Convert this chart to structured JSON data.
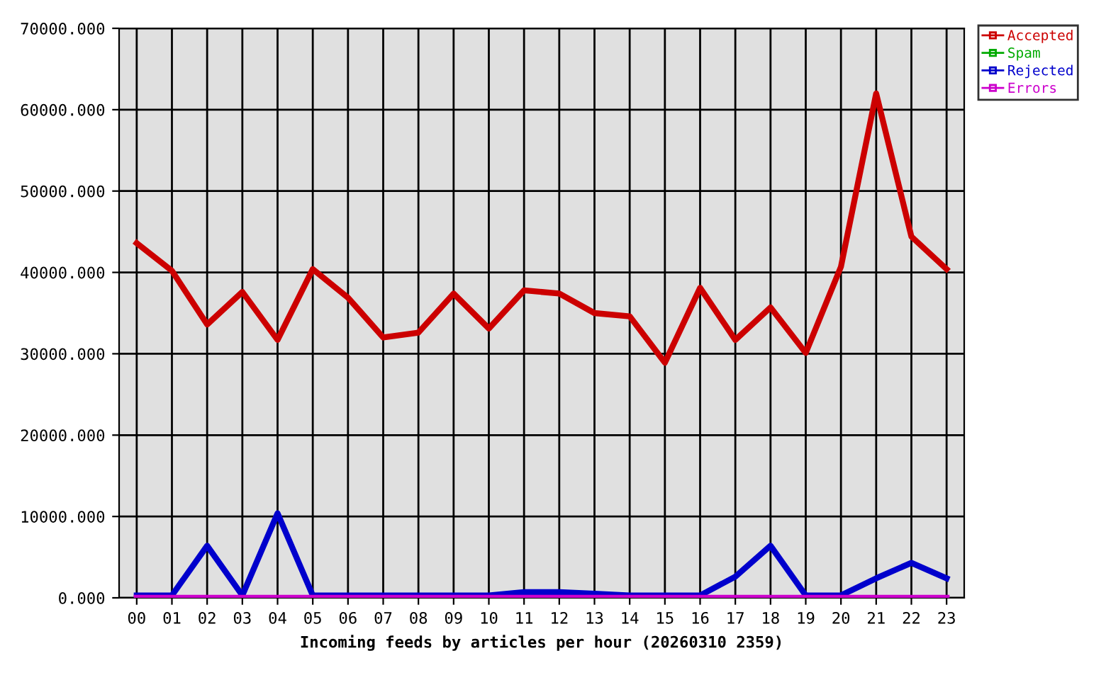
{
  "chart_data": {
    "type": "line",
    "xlabel": "Incoming feeds by articles per hour (20260310 2359)",
    "categories": [
      "00",
      "01",
      "02",
      "03",
      "04",
      "05",
      "06",
      "07",
      "08",
      "09",
      "10",
      "11",
      "12",
      "13",
      "14",
      "15",
      "16",
      "17",
      "18",
      "19",
      "20",
      "21",
      "22",
      "23"
    ],
    "series": [
      {
        "name": "Accepted",
        "color": "#cc0000",
        "values": [
          43600,
          40200,
          33600,
          37600,
          31700,
          40400,
          36900,
          32000,
          32600,
          37400,
          33100,
          37800,
          37400,
          35000,
          34600,
          28900,
          38100,
          31700,
          35700,
          30100,
          40700,
          62000,
          44400,
          40400
        ]
      },
      {
        "name": "Spam",
        "color": "#00aa00",
        "values": [
          null,
          null,
          null,
          null,
          null,
          null,
          null,
          null,
          null,
          null,
          null,
          null,
          null,
          null,
          null,
          null,
          null,
          null,
          null,
          null,
          null,
          null,
          null,
          null
        ]
      },
      {
        "name": "Rejected",
        "color": "#0000cc",
        "values": [
          300,
          300,
          6400,
          300,
          10400,
          300,
          300,
          300,
          300,
          300,
          300,
          700,
          700,
          500,
          300,
          300,
          300,
          2600,
          6400,
          300,
          300,
          2400,
          4300,
          2400
        ]
      },
      {
        "name": "Errors",
        "color": "#cc00cc",
        "values": [
          0,
          0,
          0,
          0,
          0,
          0,
          0,
          0,
          0,
          0,
          0,
          0,
          0,
          0,
          0,
          0,
          0,
          0,
          0,
          0,
          0,
          0,
          0,
          0
        ]
      }
    ],
    "ylim": [
      0,
      70000
    ],
    "yticks": [
      {
        "value": 0,
        "label": "0.000"
      },
      {
        "value": 10000,
        "label": "10000.000"
      },
      {
        "value": 20000,
        "label": "20000.000"
      },
      {
        "value": 30000,
        "label": "30000.000"
      },
      {
        "value": 40000,
        "label": "40000.000"
      },
      {
        "value": 50000,
        "label": "50000.000"
      },
      {
        "value": 60000,
        "label": "60000.000"
      },
      {
        "value": 70000,
        "label": "70000.000"
      }
    ],
    "grid": true,
    "legend": "top right",
    "marker": "none",
    "line_style": "solid"
  }
}
